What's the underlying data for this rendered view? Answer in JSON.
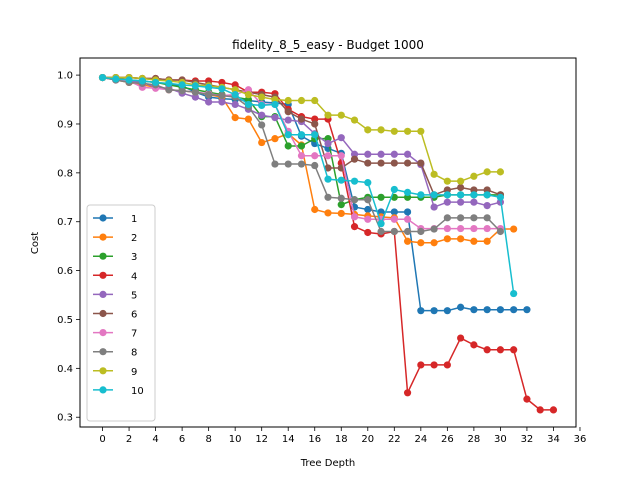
{
  "chart_data": {
    "type": "line",
    "title": "fidelity_8_5_easy - Budget  1000",
    "xlabel": "Tree Depth",
    "ylabel": "Cost",
    "xlim": [
      -1.7,
      35.7
    ],
    "ylim": [
      0.28,
      1.035
    ],
    "xticks": [
      0,
      2,
      4,
      6,
      8,
      10,
      12,
      14,
      16,
      18,
      20,
      22,
      24,
      26,
      28,
      30,
      32,
      34,
      36
    ],
    "yticks": [
      0.3,
      0.4,
      0.5,
      0.6,
      0.7,
      0.8,
      0.9,
      1.0
    ],
    "ytick_labels": [
      "0.3",
      "0.4",
      "0.5",
      "0.6",
      "0.7",
      "0.8",
      "0.9",
      "1.0"
    ],
    "grid": false,
    "legend_position": "lower-left",
    "series": [
      {
        "name": "1",
        "color": "#1f77b4",
        "start": 0,
        "values": [
          0.995,
          0.992,
          0.99,
          0.988,
          0.985,
          0.982,
          0.978,
          0.965,
          0.955,
          0.952,
          0.95,
          0.948,
          0.945,
          0.943,
          0.94,
          0.875,
          0.86,
          0.85,
          0.84,
          0.73,
          0.725,
          0.72,
          0.72,
          0.72,
          0.518,
          0.518,
          0.518,
          0.525,
          0.52,
          0.52,
          0.52,
          0.52,
          0.52
        ]
      },
      {
        "name": "2",
        "color": "#ff7f0e",
        "start": 0,
        "values": [
          0.995,
          0.99,
          0.985,
          0.98,
          0.975,
          0.97,
          0.968,
          0.965,
          0.96,
          0.955,
          0.913,
          0.91,
          0.862,
          0.87,
          0.88,
          0.857,
          0.725,
          0.718,
          0.717,
          0.715,
          0.712,
          0.71,
          0.708,
          0.66,
          0.657,
          0.657,
          0.665,
          0.665,
          0.66,
          0.66,
          0.685,
          0.685
        ]
      },
      {
        "name": "3",
        "color": "#2ca02c",
        "start": 0,
        "values": [
          0.995,
          0.993,
          0.99,
          0.988,
          0.985,
          0.98,
          0.975,
          0.97,
          0.965,
          0.96,
          0.955,
          0.95,
          0.915,
          0.915,
          0.855,
          0.855,
          0.87,
          0.87,
          0.735,
          0.745,
          0.75,
          0.75,
          0.75,
          0.75,
          0.75,
          0.75,
          0.755,
          0.755,
          0.755,
          0.755,
          0.755
        ]
      },
      {
        "name": "4",
        "color": "#d62728",
        "start": 0,
        "values": [
          0.995,
          0.995,
          0.995,
          0.993,
          0.993,
          0.99,
          0.99,
          0.988,
          0.988,
          0.985,
          0.98,
          0.965,
          0.965,
          0.962,
          0.93,
          0.915,
          0.91,
          0.91,
          0.82,
          0.69,
          0.678,
          0.675,
          0.68,
          0.35,
          0.407,
          0.407,
          0.407,
          0.462,
          0.448,
          0.438,
          0.438,
          0.438,
          0.337,
          0.315,
          0.315
        ]
      },
      {
        "name": "5",
        "color": "#9467bd",
        "start": 0,
        "values": [
          0.995,
          0.99,
          0.988,
          0.985,
          0.975,
          0.973,
          0.963,
          0.955,
          0.945,
          0.945,
          0.94,
          0.93,
          0.918,
          0.913,
          0.908,
          0.905,
          0.88,
          0.86,
          0.872,
          0.838,
          0.838,
          0.838,
          0.838,
          0.838,
          0.817,
          0.73,
          0.74,
          0.74,
          0.74,
          0.733,
          0.74
        ]
      },
      {
        "name": "6",
        "color": "#8c564b",
        "start": 0,
        "values": [
          0.995,
          0.995,
          0.995,
          0.993,
          0.993,
          0.99,
          0.99,
          0.985,
          0.98,
          0.975,
          0.97,
          0.965,
          0.96,
          0.955,
          0.925,
          0.91,
          0.9,
          0.81,
          0.81,
          0.828,
          0.82,
          0.82,
          0.82,
          0.82,
          0.82,
          0.755,
          0.765,
          0.77,
          0.765,
          0.765,
          0.755
        ]
      },
      {
        "name": "7",
        "color": "#e377c2",
        "start": 0,
        "values": [
          0.995,
          0.99,
          0.988,
          0.975,
          0.973,
          0.97,
          0.968,
          0.965,
          0.962,
          0.958,
          0.96,
          0.97,
          0.94,
          0.94,
          0.885,
          0.835,
          0.835,
          0.835,
          0.835,
          0.71,
          0.705,
          0.705,
          0.705,
          0.705,
          0.686,
          0.686,
          0.686,
          0.686,
          0.686,
          0.686,
          0.686
        ]
      },
      {
        "name": "8",
        "color": "#7f7f7f",
        "start": 0,
        "values": [
          0.995,
          0.99,
          0.985,
          0.983,
          0.98,
          0.97,
          0.968,
          0.965,
          0.96,
          0.958,
          0.955,
          0.935,
          0.898,
          0.818,
          0.818,
          0.818,
          0.815,
          0.75,
          0.748,
          0.745,
          0.745,
          0.68,
          0.68,
          0.68,
          0.68,
          0.685,
          0.708,
          0.708,
          0.708,
          0.708,
          0.68
        ]
      },
      {
        "name": "9",
        "color": "#bcbd22",
        "start": 0,
        "values": [
          0.995,
          0.995,
          0.995,
          0.993,
          0.99,
          0.988,
          0.985,
          0.98,
          0.978,
          0.975,
          0.97,
          0.96,
          0.955,
          0.95,
          0.948,
          0.948,
          0.948,
          0.918,
          0.918,
          0.908,
          0.888,
          0.888,
          0.885,
          0.885,
          0.885,
          0.797,
          0.783,
          0.783,
          0.793,
          0.802,
          0.802
        ]
      },
      {
        "name": "10",
        "color": "#17becf",
        "start": 0,
        "values": [
          0.995,
          0.992,
          0.99,
          0.988,
          0.985,
          0.983,
          0.98,
          0.978,
          0.975,
          0.972,
          0.96,
          0.94,
          0.938,
          0.94,
          0.878,
          0.878,
          0.878,
          0.787,
          0.785,
          0.783,
          0.78,
          0.696,
          0.766,
          0.76,
          0.755,
          0.755,
          0.755,
          0.755,
          0.755,
          0.755,
          0.75,
          0.553
        ]
      }
    ]
  }
}
